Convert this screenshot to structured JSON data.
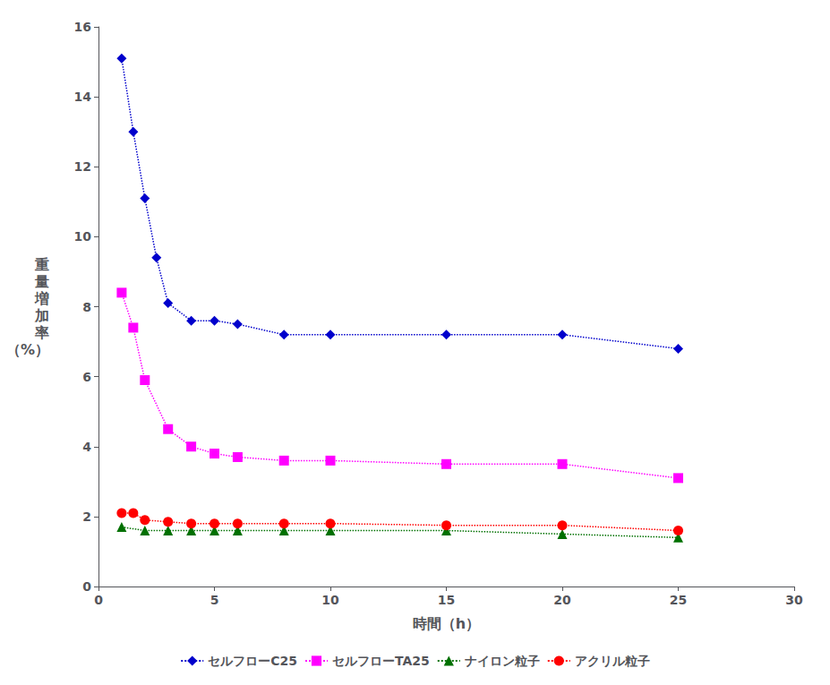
{
  "chart_data": {
    "type": "line",
    "xlabel": "時間（h）",
    "ylabel": "重\n量\n増\n加\n率\n（%）",
    "xlim": [
      0,
      30
    ],
    "ylim": [
      0,
      16
    ],
    "xticks": [
      0,
      5,
      10,
      15,
      20,
      25,
      30
    ],
    "yticks": [
      0,
      2,
      4,
      6,
      8,
      10,
      12,
      14,
      16
    ],
    "grid": false,
    "legend": "bottom",
    "series": [
      {
        "name": "セルフローC25",
        "x": [
          1,
          1.5,
          2,
          2.5,
          3,
          4,
          5,
          6,
          8,
          10,
          15,
          20,
          25
        ],
        "values": [
          15.1,
          13.0,
          11.1,
          9.4,
          8.1,
          7.6,
          7.6,
          7.5,
          7.2,
          7.2,
          7.2,
          7.2,
          6.8
        ],
        "color": "#0000CC",
        "marker": "diamond",
        "line_style": "dotted"
      },
      {
        "name": "セルフローTA25",
        "x": [
          1,
          1.5,
          2,
          3,
          4,
          5,
          6,
          8,
          10,
          15,
          20,
          25
        ],
        "values": [
          8.4,
          7.4,
          5.9,
          4.5,
          4.0,
          3.8,
          3.7,
          3.6,
          3.6,
          3.5,
          3.5,
          3.1
        ],
        "color": "#FF00FF",
        "marker": "square",
        "line_style": "dotted"
      },
      {
        "name": "ナイロン粒子",
        "x": [
          1,
          2,
          3,
          4,
          5,
          6,
          8,
          10,
          15,
          20,
          25
        ],
        "values": [
          1.7,
          1.6,
          1.6,
          1.6,
          1.6,
          1.6,
          1.6,
          1.6,
          1.6,
          1.5,
          1.4
        ],
        "color": "#007000",
        "marker": "triangle",
        "line_style": "dotted"
      },
      {
        "name": "アクリル粒子",
        "x": [
          1,
          1.5,
          2,
          3,
          4,
          5,
          6,
          8,
          10,
          15,
          20,
          25
        ],
        "values": [
          2.1,
          2.1,
          1.9,
          1.85,
          1.8,
          1.8,
          1.8,
          1.8,
          1.8,
          1.75,
          1.75,
          1.6
        ],
        "color": "#FF0000",
        "marker": "circle",
        "line_style": "dotted"
      }
    ]
  }
}
